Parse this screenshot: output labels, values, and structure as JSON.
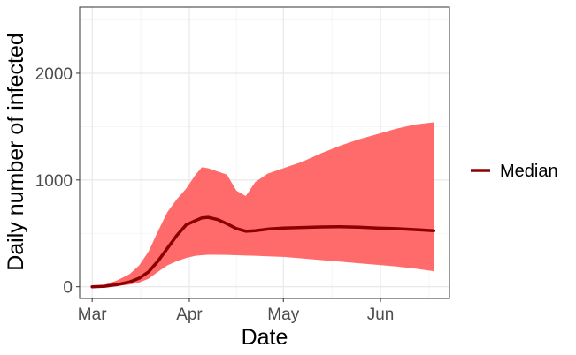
{
  "chart_data": {
    "type": "line",
    "xlabel": "Date",
    "ylabel": "Daily number of infected",
    "x_ticks": [
      {
        "label": "Mar",
        "date": "2020-03-01"
      },
      {
        "label": "Apr",
        "date": "2020-04-01"
      },
      {
        "label": "May",
        "date": "2020-05-01"
      },
      {
        "label": "Jun",
        "date": "2020-06-01"
      }
    ],
    "y_ticks": [
      0,
      1000,
      2000
    ],
    "xlim": [
      "2020-02-26",
      "2020-06-23"
    ],
    "ylim": [
      -110,
      2620
    ],
    "grid": true,
    "legend_position": "right",
    "series": [
      {
        "name": "Median",
        "color": "#8b0000",
        "x": [
          "2020-03-01",
          "2020-03-05",
          "2020-03-09",
          "2020-03-13",
          "2020-03-16",
          "2020-03-19",
          "2020-03-22",
          "2020-03-25",
          "2020-03-28",
          "2020-03-31",
          "2020-04-03",
          "2020-04-05",
          "2020-04-07",
          "2020-04-10",
          "2020-04-13",
          "2020-04-16",
          "2020-04-19",
          "2020-04-22",
          "2020-04-26",
          "2020-05-01",
          "2020-05-07",
          "2020-05-13",
          "2020-05-19",
          "2020-05-25",
          "2020-05-31",
          "2020-06-06",
          "2020-06-12",
          "2020-06-18"
        ],
        "y": [
          0,
          5,
          20,
          45,
          80,
          140,
          240,
          360,
          480,
          580,
          620,
          645,
          650,
          630,
          590,
          545,
          520,
          525,
          540,
          550,
          555,
          560,
          562,
          558,
          550,
          545,
          535,
          525
        ]
      }
    ],
    "band": {
      "color": "#ff6b6b",
      "x": [
        "2020-03-01",
        "2020-03-05",
        "2020-03-09",
        "2020-03-13",
        "2020-03-16",
        "2020-03-19",
        "2020-03-22",
        "2020-03-25",
        "2020-03-28",
        "2020-03-31",
        "2020-04-03",
        "2020-04-05",
        "2020-04-07",
        "2020-04-10",
        "2020-04-13",
        "2020-04-16",
        "2020-04-19",
        "2020-04-22",
        "2020-04-26",
        "2020-05-01",
        "2020-05-07",
        "2020-05-13",
        "2020-05-19",
        "2020-05-25",
        "2020-05-31",
        "2020-06-06",
        "2020-06-12",
        "2020-06-18"
      ],
      "upper": [
        5,
        20,
        60,
        120,
        200,
        330,
        520,
        700,
        820,
        920,
        1050,
        1120,
        1110,
        1080,
        1050,
        900,
        850,
        980,
        1060,
        1110,
        1170,
        1250,
        1320,
        1380,
        1430,
        1480,
        1520,
        1540
      ],
      "lower": [
        0,
        2,
        8,
        20,
        40,
        75,
        140,
        200,
        240,
        270,
        290,
        295,
        300,
        300,
        298,
        295,
        292,
        290,
        285,
        280,
        265,
        250,
        235,
        220,
        205,
        190,
        170,
        145
      ]
    }
  }
}
